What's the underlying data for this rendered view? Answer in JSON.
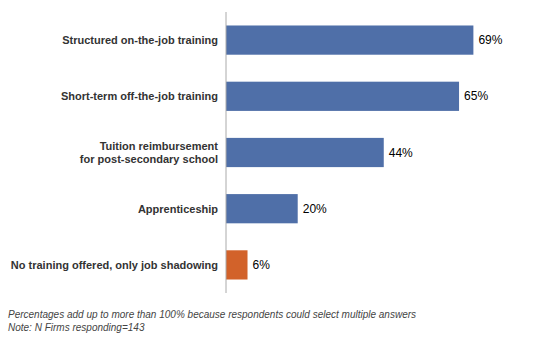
{
  "chart_data": {
    "type": "bar",
    "orientation": "horizontal",
    "categories": [
      "No training offered, only job shadowing",
      "Apprenticeship",
      "Tuition reimbursement\nfor post-secondary school",
      "Short-term off-the-job training",
      "Structured on-the-job training"
    ],
    "values": [
      6,
      20,
      44,
      65,
      69
    ],
    "value_labels": [
      "6%",
      "20%",
      "44%",
      "65%",
      "69%"
    ],
    "colors": [
      "#d2622a",
      "#4f6fa8",
      "#4f6fa8",
      "#4f6fa8",
      "#4f6fa8"
    ],
    "xlim": [
      0,
      82
    ],
    "data_labels": true,
    "tick_labels": "y",
    "grid": false,
    "annotations": [
      "Percentages add up to more than 100% because respondents could select multiple answers",
      "Note: N Firms responding=143"
    ]
  }
}
